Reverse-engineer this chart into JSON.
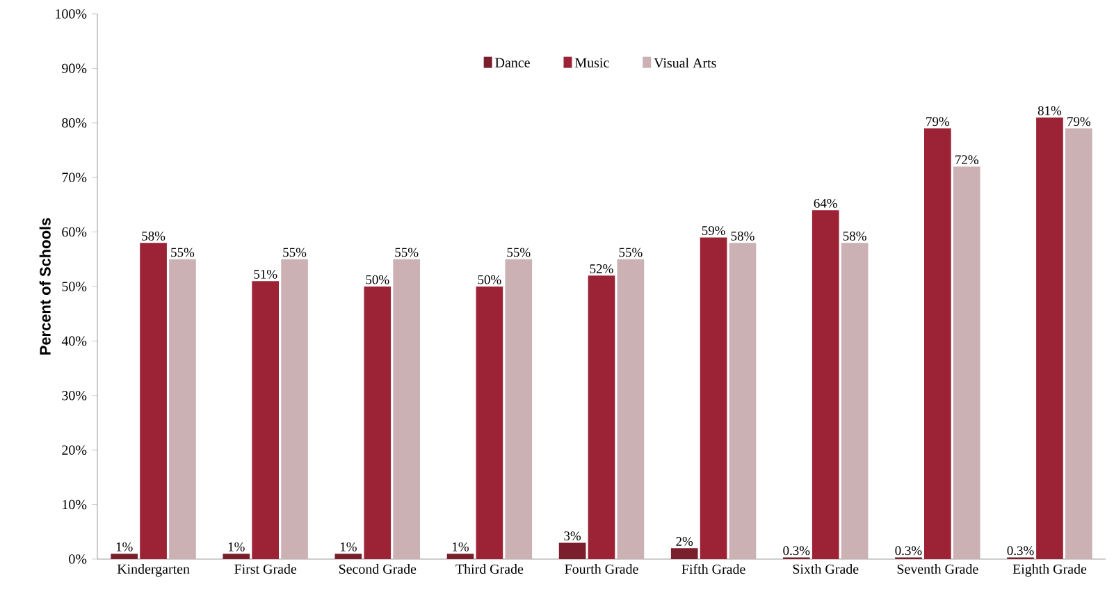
{
  "chart_data": {
    "type": "bar",
    "ylabel": "Percent of Schools",
    "categories": [
      "Kindergarten",
      "First Grade",
      "Second Grade",
      "Third Grade",
      "Fourth Grade",
      "Fifth Grade",
      "Sixth Grade",
      "Seventh Grade",
      "Eighth Grade"
    ],
    "series": [
      {
        "name": "Dance",
        "color": "#7a1f2b",
        "values": [
          1,
          1,
          1,
          1,
          3,
          2,
          0.3,
          0.3,
          0.3
        ],
        "value_labels": [
          "1%",
          "1%",
          "1%",
          "1%",
          "3%",
          "2%",
          "0.3%",
          "0.3%",
          "0.3%"
        ]
      },
      {
        "name": "Music",
        "color": "#9b2335",
        "values": [
          58,
          51,
          50,
          50,
          52,
          59,
          64,
          79,
          81
        ],
        "value_labels": [
          "58%",
          "51%",
          "50%",
          "50%",
          "52%",
          "59%",
          "64%",
          "79%",
          "81%"
        ]
      },
      {
        "name": "Visual Arts",
        "color": "#cbb1b3",
        "values": [
          55,
          55,
          55,
          55,
          55,
          58,
          58,
          72,
          79
        ],
        "value_labels": [
          "55%",
          "55%",
          "55%",
          "55%",
          "55%",
          "58%",
          "58%",
          "72%",
          "79%"
        ]
      }
    ],
    "ylim": [
      0,
      100
    ],
    "yticks": [
      {
        "value": 0,
        "label": "0%"
      },
      {
        "value": 10,
        "label": "10%"
      },
      {
        "value": 20,
        "label": "20%"
      },
      {
        "value": 30,
        "label": "30%"
      },
      {
        "value": 40,
        "label": "40%"
      },
      {
        "value": 50,
        "label": "50%"
      },
      {
        "value": 60,
        "label": "60%"
      },
      {
        "value": 70,
        "label": "70%"
      },
      {
        "value": 80,
        "label": "80%"
      },
      {
        "value": 90,
        "label": "90%"
      },
      {
        "value": 100,
        "label": "100%"
      }
    ],
    "legend": "top"
  }
}
